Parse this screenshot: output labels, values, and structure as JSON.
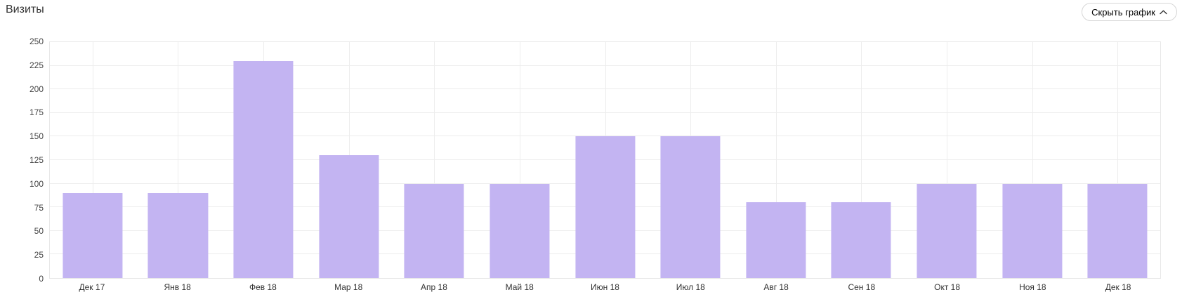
{
  "header": {
    "title": "Визиты",
    "hide_button_label": "Скрыть график",
    "hide_button_icon": "chevron-up-icon"
  },
  "colors": {
    "background": "#ffffff",
    "bar_fill": "#c3b4f2",
    "grid_line": "#ededed",
    "plot_border": "#e8e8e8",
    "axis_text": "#444444",
    "x_axis_text": "#333333",
    "title_text": "#333333",
    "button_border": "#d6d6d6",
    "button_text": "#000000"
  },
  "chart_data": {
    "type": "bar",
    "title": "Визиты",
    "categories": [
      "Дек 17",
      "Янв 18",
      "Фев 18",
      "Мар 18",
      "Апр 18",
      "Май 18",
      "Июн 18",
      "Июл 18",
      "Авг 18",
      "Сен 18",
      "Окт 18",
      "Ноя 18",
      "Дек 18"
    ],
    "values": [
      90,
      90,
      230,
      130,
      100,
      100,
      150,
      150,
      80,
      80,
      100,
      100,
      100
    ],
    "xlabel": "",
    "ylabel": "",
    "ylim": [
      0,
      250
    ],
    "ytick_step": 25,
    "yticks": [
      0,
      25,
      50,
      75,
      100,
      125,
      150,
      175,
      200,
      225,
      250
    ],
    "grid": true,
    "legend": false,
    "bar_width_fraction": 0.7
  }
}
